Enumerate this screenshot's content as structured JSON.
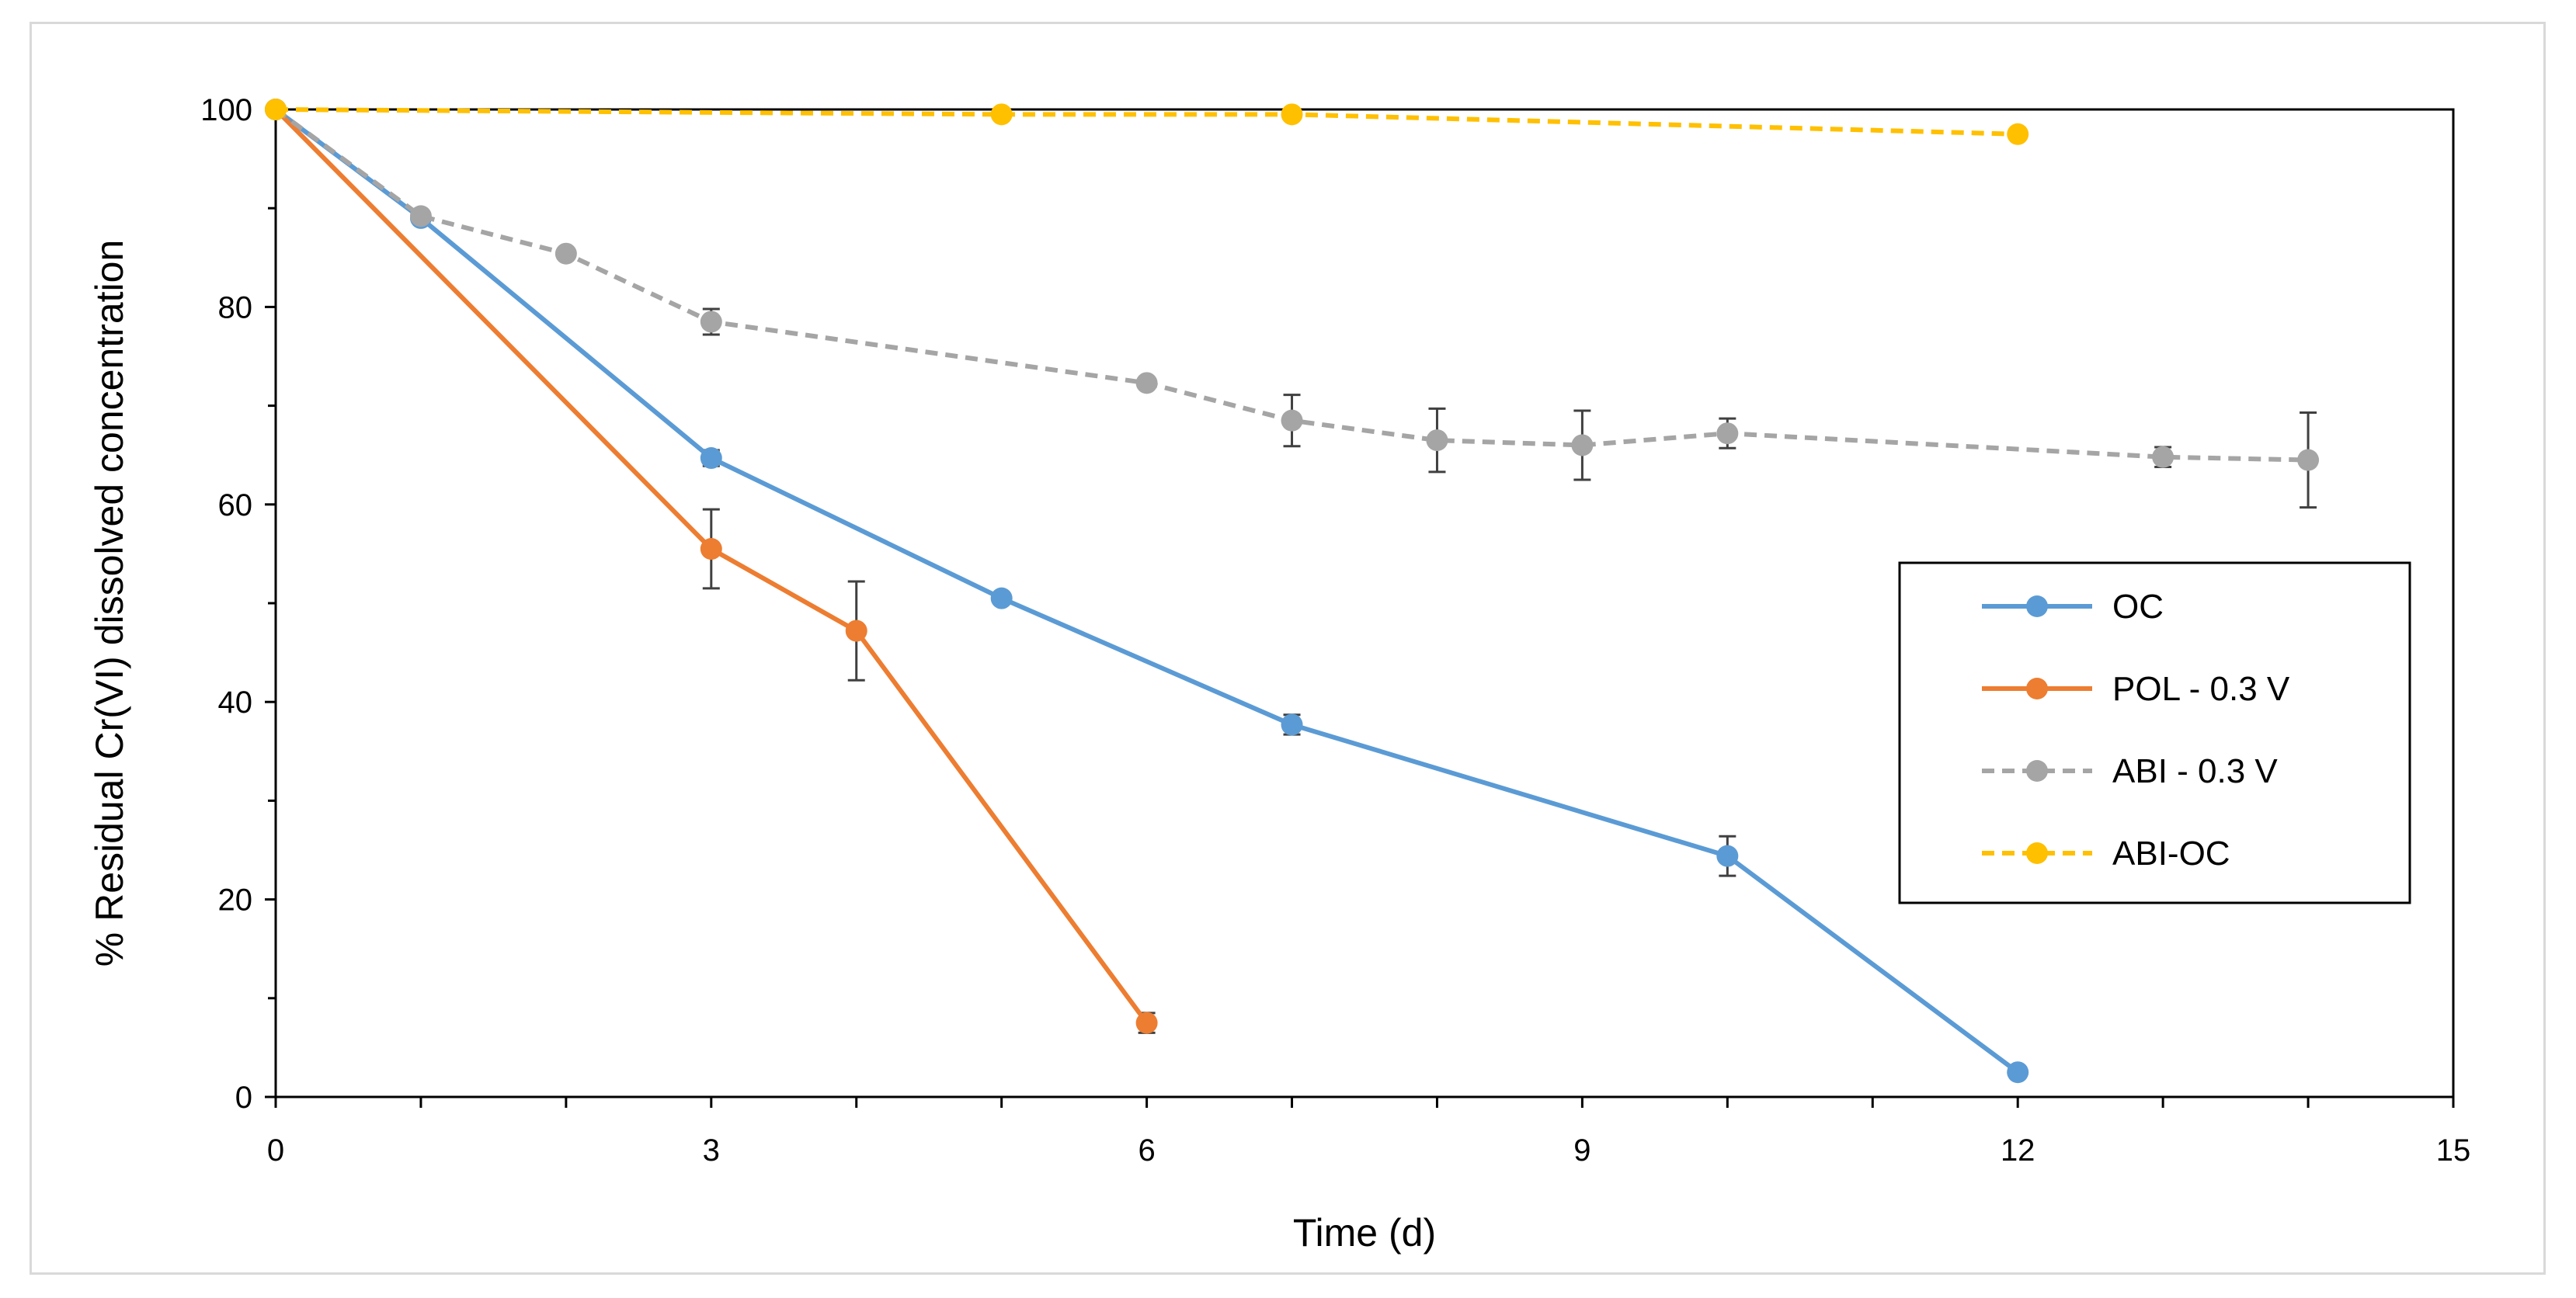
{
  "chart_data": {
    "type": "line",
    "title": "",
    "xlabel": "Time  (d)",
    "ylabel": "% Residual Cr(VI) dissolved concentration",
    "xlim": [
      0,
      15
    ],
    "ylim": [
      0,
      100
    ],
    "xticks": [
      0,
      3,
      6,
      9,
      12,
      15
    ],
    "yticks": [
      0,
      20,
      40,
      60,
      80,
      100
    ],
    "grid": false,
    "legend_position": "right",
    "series": [
      {
        "name": "OC",
        "color": "#5b9bd5",
        "dash": "solid",
        "x": [
          0,
          1,
          3,
          5,
          7,
          10,
          12
        ],
        "y": [
          100,
          89,
          64.7,
          50.5,
          37.7,
          24.4,
          2.5
        ],
        "err": [
          0,
          0,
          0.8,
          0.5,
          1,
          2,
          0.5
        ]
      },
      {
        "name": "POL - 0.3 V",
        "color": "#ed7d31",
        "dash": "solid",
        "x": [
          0,
          3,
          4,
          6
        ],
        "y": [
          100,
          55.5,
          47.2,
          7.5
        ],
        "err": [
          0,
          4,
          5,
          1
        ]
      },
      {
        "name": "ABI - 0.3 V",
        "color": "#a5a5a5",
        "dash": "dashed",
        "x": [
          0,
          1,
          2,
          3,
          6,
          7,
          8,
          9,
          10,
          13,
          14
        ],
        "y": [
          100,
          89.2,
          85.4,
          78.5,
          72.3,
          68.5,
          66.5,
          66,
          67.2,
          64.8,
          64.5
        ],
        "err": [
          0,
          0,
          0,
          1.3,
          0,
          2.6,
          3.2,
          3.5,
          1.5,
          1,
          4.8
        ]
      },
      {
        "name": "ABI-OC",
        "color": "#ffc000",
        "dash": "dashed",
        "x": [
          0,
          5,
          7,
          12
        ],
        "y": [
          100,
          99.5,
          99.5,
          97.5
        ],
        "err": [
          0,
          0,
          0,
          0
        ]
      }
    ]
  }
}
